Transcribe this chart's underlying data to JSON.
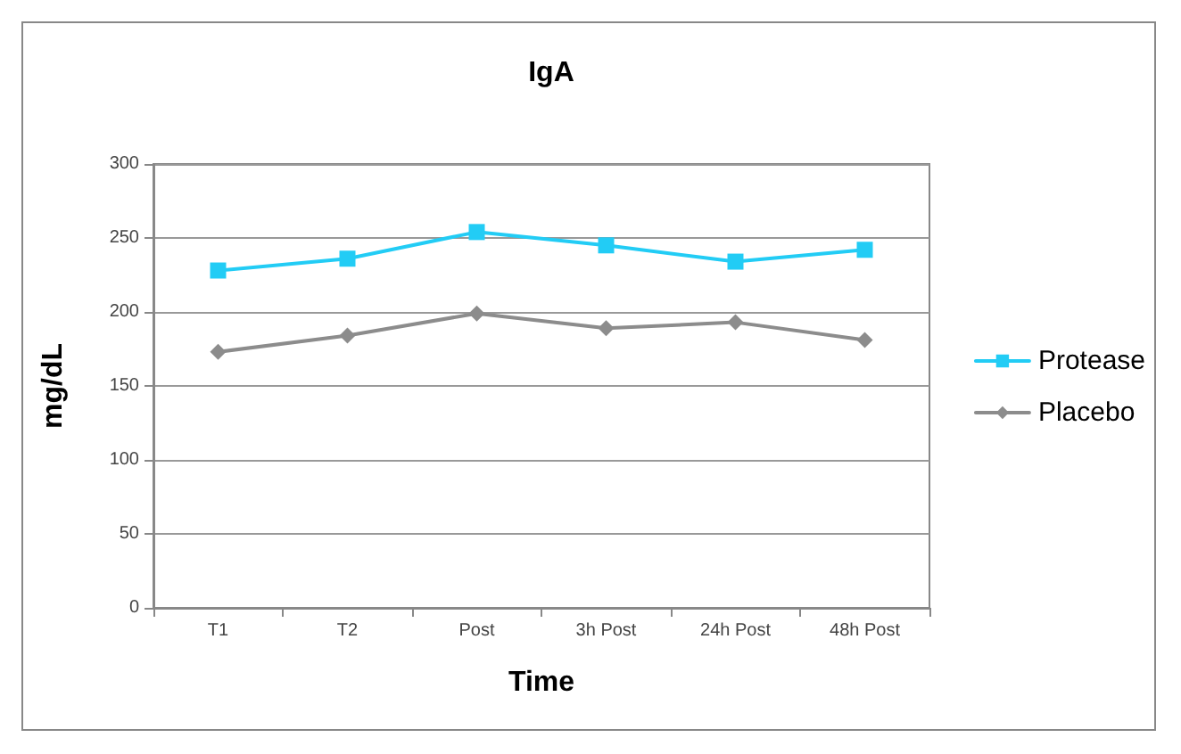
{
  "chart_data": {
    "type": "line",
    "title": "IgA",
    "xlabel": "Time",
    "ylabel": "mg/dL",
    "categories": [
      "T1",
      "T2",
      "Post",
      "3h Post",
      "24h Post",
      "48h Post"
    ],
    "series": [
      {
        "name": "Protease",
        "color": "#22ccf5",
        "marker": "square",
        "values": [
          228,
          236,
          254,
          245,
          234,
          242
        ]
      },
      {
        "name": "Placebo",
        "color": "#8c8c8c",
        "marker": "diamond",
        "values": [
          173,
          184,
          199,
          189,
          193,
          181
        ]
      }
    ],
    "ylim": [
      0,
      300
    ],
    "yticks": [
      0,
      50,
      100,
      150,
      200,
      250,
      300
    ],
    "grid": "y",
    "legend": "right"
  }
}
